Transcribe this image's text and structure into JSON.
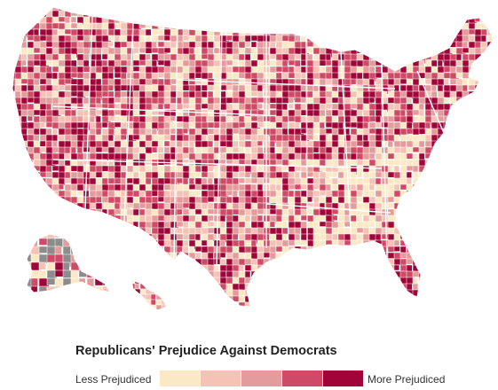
{
  "legend": {
    "title": "Republicans' Prejudice Against Democrats",
    "low_label": "Less Prejudiced",
    "high_label": "More Prejudiced",
    "colors": [
      "#fbe9c6",
      "#f5c3b6",
      "#e39b9c",
      "#cf4a66",
      "#a0053a"
    ]
  },
  "map": {
    "projection": "albers-usa",
    "unit": "county",
    "border_color": "#ffffff",
    "no_data_color": "#8c8c8c"
  }
}
